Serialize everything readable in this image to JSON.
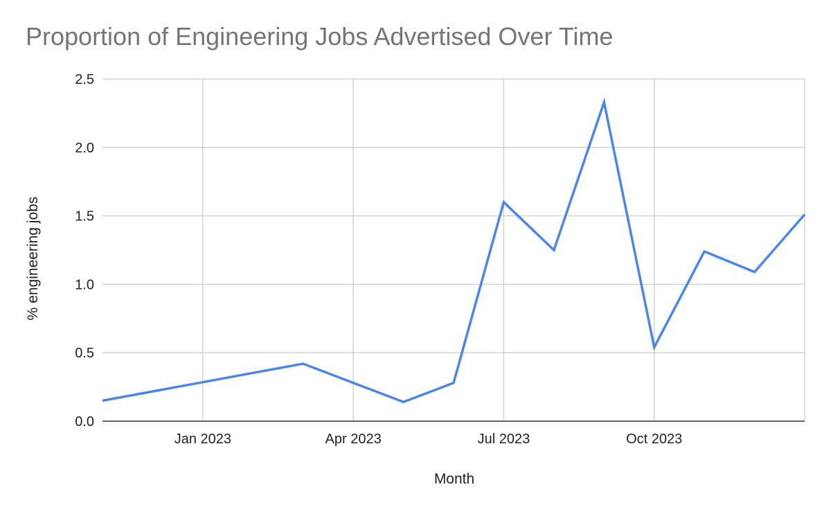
{
  "chart_data": {
    "type": "line",
    "title": "Proportion of Engineering Jobs Advertised Over Time",
    "xlabel": "Month",
    "ylabel": "% engineering jobs",
    "x_ticks": [
      "Jan 2023",
      "Apr 2023",
      "Jul 2023",
      "Oct 2023"
    ],
    "y_ticks": [
      "0.0",
      "0.5",
      "1.0",
      "1.5",
      "2.0",
      "2.5"
    ],
    "ylim": [
      0,
      2.5
    ],
    "xlim": [
      "2022-11-01",
      "2024-01-01"
    ],
    "grid": true,
    "series": [
      {
        "color": "#4a86e8",
        "points": [
          {
            "x": "2022-11-01",
            "y": 0.15
          },
          {
            "x": "2023-03-01",
            "y": 0.42
          },
          {
            "x": "2023-05-01",
            "y": 0.14
          },
          {
            "x": "2023-06-01",
            "y": 0.28
          },
          {
            "x": "2023-07-01",
            "y": 1.6
          },
          {
            "x": "2023-08-01",
            "y": 1.25
          },
          {
            "x": "2023-09-01",
            "y": 2.33
          },
          {
            "x": "2023-10-01",
            "y": 0.54
          },
          {
            "x": "2023-11-01",
            "y": 1.24
          },
          {
            "x": "2023-12-01",
            "y": 1.09
          },
          {
            "x": "2024-01-01",
            "y": 1.51
          }
        ]
      }
    ]
  }
}
